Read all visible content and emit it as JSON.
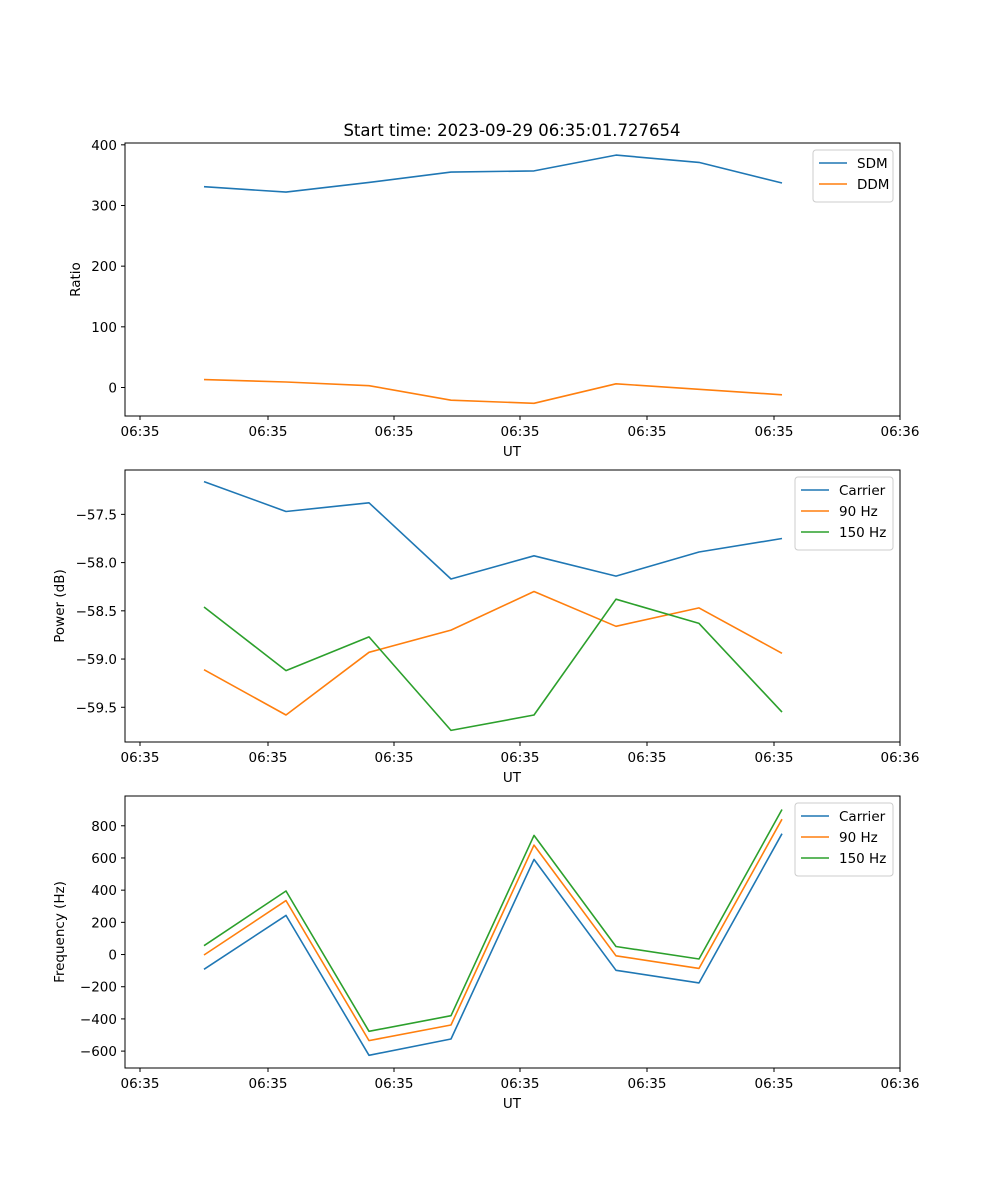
{
  "figure": {
    "title": "Start time: 2023-09-29 06:35:01.727654"
  },
  "chart_data": [
    {
      "type": "line",
      "xlabel": "UT",
      "ylabel": "Ratio",
      "x": [
        1,
        2,
        3,
        4,
        5,
        6,
        7,
        8
      ],
      "xlim": [
        0.8,
        9.2
      ],
      "xticks": [
        1,
        2.5,
        4,
        5.5,
        7,
        8.5,
        10
      ],
      "x_ticks_values": [
        0.0,
        1.5,
        3.0,
        4.5,
        6.0,
        7.5,
        9.0
      ],
      "x_tick_labels": [
        "06:35",
        "06:35",
        "06:35",
        "06:35",
        "06:35",
        "06:35",
        "06:36"
      ],
      "ylim": [
        -47,
        403
      ],
      "yticks": [
        0,
        100,
        200,
        300,
        400
      ],
      "y_tick_labels": [
        "0",
        "100",
        "200",
        "300",
        "400"
      ],
      "legend_position": "upper right",
      "series": [
        {
          "name": "SDM",
          "color": "#1f77b4",
          "values": [
            331,
            322,
            338,
            355,
            357,
            383,
            371,
            337
          ]
        },
        {
          "name": "DDM",
          "color": "#ff7f0e",
          "values": [
            13,
            9,
            3,
            -21,
            -26,
            6,
            -3,
            -12
          ]
        }
      ]
    },
    {
      "type": "line",
      "xlabel": "UT",
      "ylabel": "Power (dB)",
      "x": [
        1,
        2,
        3,
        4,
        5,
        6,
        7,
        8
      ],
      "xlim": [
        0.8,
        9.2
      ],
      "x_ticks_values": [
        0.0,
        1.5,
        3.0,
        4.5,
        6.0,
        7.5,
        9.0
      ],
      "x_tick_labels": [
        "06:35",
        "06:35",
        "06:35",
        "06:35",
        "06:35",
        "06:35",
        "06:36"
      ],
      "ylim": [
        -59.86,
        -57.04
      ],
      "yticks": [
        -59.5,
        -59.0,
        -58.5,
        -58.0,
        -57.5
      ],
      "y_tick_labels": [
        "−59.5",
        "−59.0",
        "−58.5",
        "−58.0",
        "−57.5"
      ],
      "legend_position": "upper right",
      "series": [
        {
          "name": "Carrier",
          "color": "#1f77b4",
          "values": [
            -57.16,
            -57.47,
            -57.38,
            -58.17,
            -57.93,
            -58.14,
            -57.89,
            -57.75
          ]
        },
        {
          "name": "90 Hz",
          "color": "#ff7f0e",
          "values": [
            -59.11,
            -59.58,
            -58.93,
            -58.7,
            -58.3,
            -58.66,
            -58.47,
            -58.94
          ]
        },
        {
          "name": "150 Hz",
          "color": "#2ca02c",
          "values": [
            -58.46,
            -59.12,
            -58.77,
            -59.74,
            -59.58,
            -58.38,
            -58.63,
            -59.55
          ]
        }
      ]
    },
    {
      "type": "line",
      "xlabel": "UT",
      "ylabel": "Frequency (Hz)",
      "x": [
        1,
        2,
        3,
        4,
        5,
        6,
        7,
        8
      ],
      "xlim": [
        0.8,
        9.2
      ],
      "x_ticks_values": [
        0.0,
        1.5,
        3.0,
        4.5,
        6.0,
        7.5,
        9.0
      ],
      "x_tick_labels": [
        "06:35",
        "06:35",
        "06:35",
        "06:35",
        "06:35",
        "06:35",
        "06:36"
      ],
      "ylim": [
        -705,
        985
      ],
      "yticks": [
        -600,
        -400,
        -200,
        0,
        200,
        400,
        600,
        800
      ],
      "y_tick_labels": [
        "−600",
        "−400",
        "−200",
        "0",
        "200",
        "400",
        "600",
        "800"
      ],
      "legend_position": "upper right",
      "series": [
        {
          "name": "Carrier",
          "color": "#1f77b4",
          "values": [
            -92,
            243,
            -626,
            -525,
            591,
            -98,
            -176,
            751
          ]
        },
        {
          "name": "90 Hz",
          "color": "#ff7f0e",
          "values": [
            -3,
            335,
            -535,
            -438,
            680,
            -8,
            -86,
            841
          ]
        },
        {
          "name": "150 Hz",
          "color": "#2ca02c",
          "values": [
            55,
            395,
            -477,
            -380,
            740,
            50,
            -28,
            901
          ]
        }
      ]
    }
  ]
}
